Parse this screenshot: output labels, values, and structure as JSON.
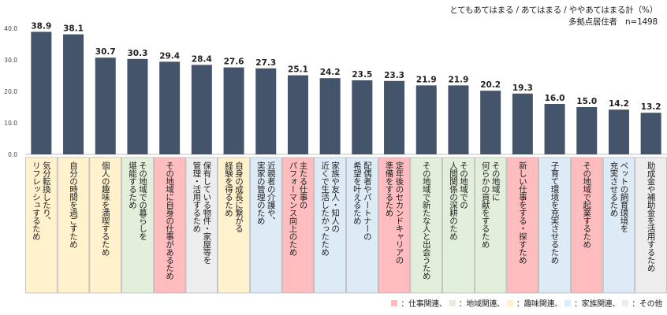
{
  "header": {
    "measure": "とてもあてはまる / あてはまる / ややあてはまる計（%）",
    "sample": "多拠点居住者　n=1498"
  },
  "colors": {
    "bar": "#44546a",
    "仕事関連": "#ffbdbf",
    "地域関連": "#e2efda",
    "趣味関連": "#fff2cc",
    "家族関連": "#ddebf7",
    "その他": "#ededed"
  },
  "legend": [
    {
      "key": "仕事関連",
      "label": "：仕事関連、"
    },
    {
      "key": "地域関連",
      "label": "：地域関連、"
    },
    {
      "key": "趣味関連",
      "label": "：趣味関連、"
    },
    {
      "key": "家族関連",
      "label": "：家族関連、"
    },
    {
      "key": "その他",
      "label": "：その他"
    }
  ],
  "chart_data": {
    "type": "bar",
    "ylim": [
      0,
      40
    ],
    "yticks": [
      "0.0",
      "10.0",
      "20.0",
      "30.0",
      "40.0"
    ],
    "value_labels": [
      "38.9",
      "38.1",
      "30.7",
      "30.3",
      "29.4",
      "28.4",
      "27.6",
      "27.3",
      "25.1",
      "24.2",
      "23.5",
      "23.3",
      "21.9",
      "21.9",
      "20.2",
      "19.3",
      "16.0",
      "15.0",
      "14.2",
      "13.2"
    ],
    "categories": [
      "気分転換したり、リフレッシュするため",
      "自分の時間を過ごすため",
      "個人の趣味を満喫するため",
      "その地域での暮らしを堪能するため",
      "その地域に自身の仕事があるため",
      "保有している物件・家屋等を管理・活用するため",
      "自身の成長に繋がる経験を得るため",
      "近親者の介護や、実家の管理のため",
      "主たる仕事のパフォーマンス向上のため",
      "家族や友人・知人の近くで生活したかったため",
      "配偶者やパートナーの希望を叶えるため",
      "定年後のセカンドキャリアの準備をするため",
      "その地域で新たな人と出会うため",
      "その地域での人間関係の深耕のため",
      "その地域に何らかの貢献をするため",
      "新しい仕事をする・探すため",
      "子育て環境を充実させるため",
      "その地域で起業するため",
      "ペットの飼育環境を充実させるため",
      "助成金や補助金を活用するため"
    ],
    "values": [
      38.9,
      38.1,
      30.7,
      30.3,
      29.4,
      28.4,
      27.6,
      27.3,
      25.1,
      24.2,
      23.5,
      23.3,
      21.9,
      21.9,
      20.2,
      19.3,
      16.0,
      15.0,
      14.2,
      13.2
    ],
    "groups": [
      "趣味関連",
      "趣味関連",
      "趣味関連",
      "地域関連",
      "仕事関連",
      "その他",
      "趣味関連",
      "家族関連",
      "仕事関連",
      "家族関連",
      "家族関連",
      "仕事関連",
      "地域関連",
      "地域関連",
      "地域関連",
      "仕事関連",
      "家族関連",
      "仕事関連",
      "家族関連",
      "その他"
    ],
    "label_lines": [
      [
        "気分転換したり、",
        "リフレッシュするため"
      ],
      [
        "自分の時間を過ごすため"
      ],
      [
        "個人の趣味を満喫するため"
      ],
      [
        "その地域での暮らしを",
        "堪能するため"
      ],
      [
        "その地域に自身の仕事があるため"
      ],
      [
        "保有している物件・家屋等を",
        "管理・活用するため"
      ],
      [
        "自身の成長に繋がる",
        "経験を得るため"
      ],
      [
        "近親者の介護や、",
        "実家の管理のため"
      ],
      [
        "主たる仕事の",
        "パフォーマンス向上のため"
      ],
      [
        "家族や友人・知人の",
        "近くで生活したかったため"
      ],
      [
        "配偶者やパートナーの",
        "希望を叶えるため"
      ],
      [
        "定年後のセカンドキャリアの",
        "準備をするため"
      ],
      [
        "その地域で新たな人と出会うため"
      ],
      [
        "その地域での",
        "人間関係の深耕のため"
      ],
      [
        "その地域に",
        "何らかの貢献をするため"
      ],
      [
        "新しい仕事をする・探すため"
      ],
      [
        "子育て環境を充実させるため"
      ],
      [
        "その地域で起業するため"
      ],
      [
        "ペットの飼育環境を",
        "充実させるため"
      ],
      [
        "助成金や補助金を活用するため"
      ]
    ]
  }
}
